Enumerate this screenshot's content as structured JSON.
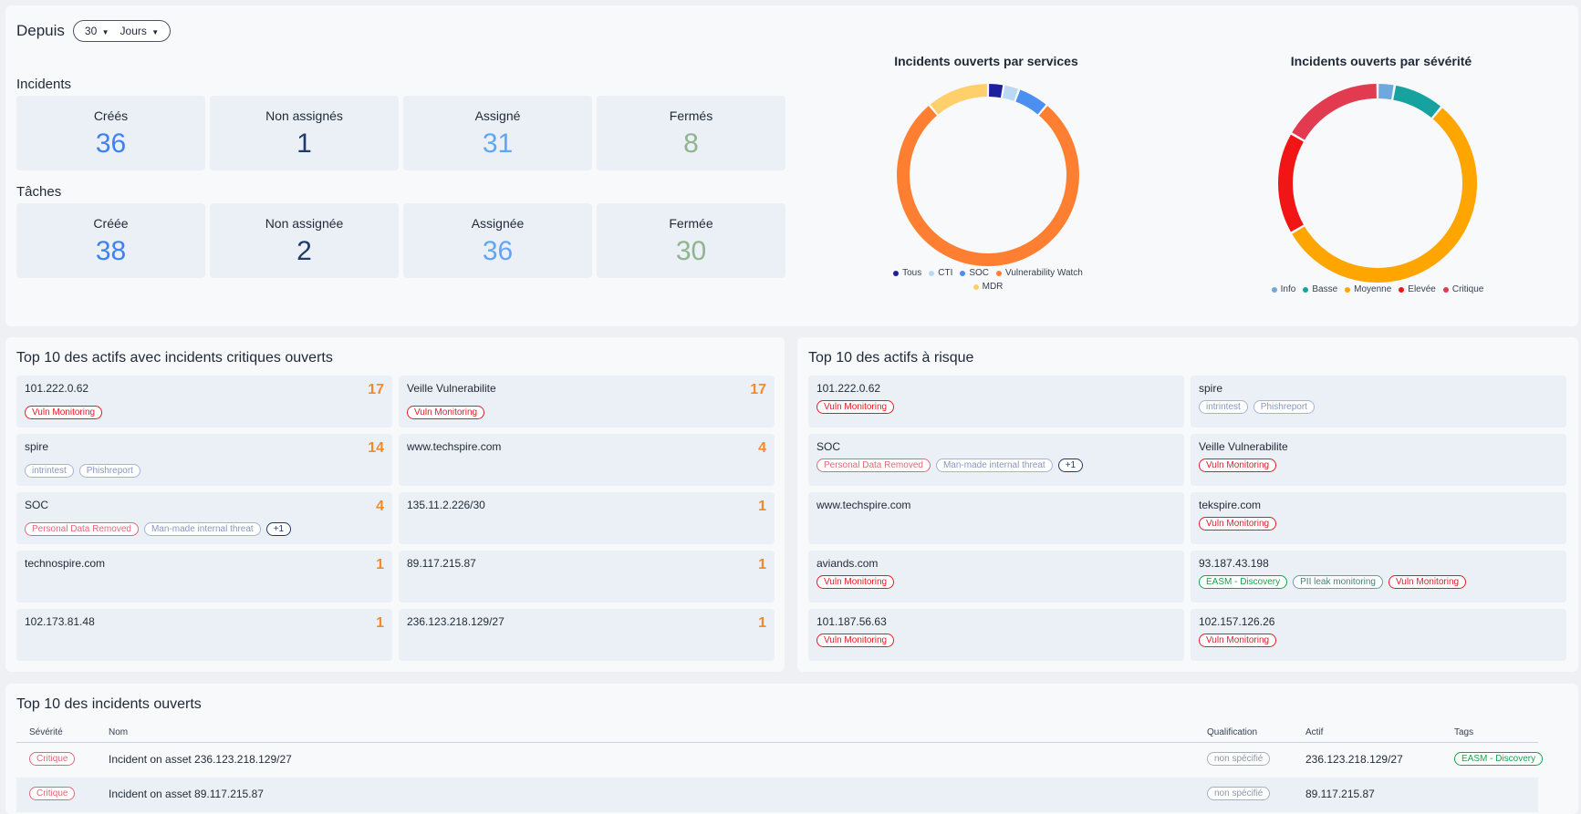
{
  "filter": {
    "label": "Depuis",
    "count": "30",
    "unit": "Jours"
  },
  "incidents": {
    "title": "Incidents",
    "stats": [
      {
        "label": "Créés",
        "value": "36",
        "color": "#3b82f6"
      },
      {
        "label": "Non assignés",
        "value": "1",
        "color": "#1e3a66"
      },
      {
        "label": "Assigné",
        "value": "31",
        "color": "#60a5fa"
      },
      {
        "label": "Fermés",
        "value": "8",
        "color": "#90b48f"
      }
    ]
  },
  "taches": {
    "title": "Tâches",
    "stats": [
      {
        "label": "Créée",
        "value": "38",
        "color": "#3b82f6"
      },
      {
        "label": "Non assignée",
        "value": "2",
        "color": "#1e3a66"
      },
      {
        "label": "Assignée",
        "value": "36",
        "color": "#60a5fa"
      },
      {
        "label": "Fermée",
        "value": "30",
        "color": "#90b48f"
      }
    ]
  },
  "chart_data": [
    {
      "type": "pie",
      "title": "Incidents ouverts par services",
      "donut": true,
      "categories": [
        "Tous",
        "CTI",
        "SOC",
        "Vulnerability Watch",
        "MDR"
      ],
      "values": [
        1,
        1,
        2,
        28,
        4
      ],
      "colors": [
        "#1e1e9f",
        "#bcd9f4",
        "#4b8ff0",
        "#ff7f32",
        "#ffcf6b"
      ],
      "legend": "bottom"
    },
    {
      "type": "pie",
      "title": "Incidents ouverts par sévérité",
      "donut": true,
      "categories": [
        "Info",
        "Basse",
        "Moyenne",
        "Elevée",
        "Critique"
      ],
      "values": [
        1,
        3,
        20,
        6,
        6
      ],
      "colors": [
        "#6fa8dc",
        "#17a2a0",
        "#ffa500",
        "#f21515",
        "#e23b50"
      ],
      "legend": "bottom"
    }
  ],
  "critical_assets": {
    "title": "Top 10 des actifs avec incidents critiques ouverts",
    "items": [
      {
        "name": "101.222.0.62",
        "count": "17",
        "tags": [
          {
            "text": "Vuln Monitoring",
            "style": "red"
          }
        ]
      },
      {
        "name": "Veille Vulnerabilite",
        "count": "17",
        "tags": [
          {
            "text": "Vuln Monitoring",
            "style": "red"
          }
        ]
      },
      {
        "name": "spire",
        "count": "14",
        "tags": [
          {
            "text": "intrintest",
            "style": "lav"
          },
          {
            "text": "Phishreport",
            "style": "lav"
          }
        ]
      },
      {
        "name": "www.techspire.com",
        "count": "4",
        "tags": []
      },
      {
        "name": "SOC",
        "count": "4",
        "tags": [
          {
            "text": "Personal Data Removed",
            "style": "pink"
          },
          {
            "text": "Man-made internal threat",
            "style": "lav"
          },
          {
            "text": "+1",
            "style": "plus"
          }
        ]
      },
      {
        "name": "135.11.2.226/30",
        "count": "1",
        "tags": []
      },
      {
        "name": "technospire.com",
        "count": "1",
        "tags": []
      },
      {
        "name": "89.117.215.87",
        "count": "1",
        "tags": []
      },
      {
        "name": "102.173.81.48",
        "count": "1",
        "tags": []
      },
      {
        "name": "236.123.218.129/27",
        "count": "1",
        "tags": []
      }
    ]
  },
  "risk_assets": {
    "title": "Top 10 des actifs à risque",
    "items": [
      {
        "name": "101.222.0.62",
        "tags": [
          {
            "text": "Vuln Monitoring",
            "style": "red"
          }
        ]
      },
      {
        "name": "spire",
        "tags": [
          {
            "text": "intrintest",
            "style": "lav"
          },
          {
            "text": "Phishreport",
            "style": "lav"
          }
        ]
      },
      {
        "name": "SOC",
        "tags": [
          {
            "text": "Personal Data Removed",
            "style": "pink"
          },
          {
            "text": "Man-made internal threat",
            "style": "lav"
          },
          {
            "text": "+1",
            "style": "plus"
          }
        ]
      },
      {
        "name": "Veille Vulnerabilite",
        "tags": [
          {
            "text": "Vuln Monitoring",
            "style": "red"
          }
        ]
      },
      {
        "name": "www.techspire.com",
        "tags": []
      },
      {
        "name": "tekspire.com",
        "tags": [
          {
            "text": "Vuln Monitoring",
            "style": "red"
          }
        ]
      },
      {
        "name": "aviands.com",
        "tags": [
          {
            "text": "Vuln Monitoring",
            "style": "red"
          }
        ]
      },
      {
        "name": "93.187.43.198",
        "tags": [
          {
            "text": "EASM - Discovery",
            "style": "green"
          },
          {
            "text": "PII leak monitoring",
            "style": "teal"
          },
          {
            "text": "Vuln Monitoring",
            "style": "red"
          }
        ]
      },
      {
        "name": "101.187.56.63",
        "tags": [
          {
            "text": "Vuln Monitoring",
            "style": "red"
          }
        ]
      },
      {
        "name": "102.157.126.26",
        "tags": [
          {
            "text": "Vuln Monitoring",
            "style": "red"
          }
        ]
      }
    ]
  },
  "open_incidents": {
    "title": "Top 10 des incidents ouverts",
    "columns": [
      "Sévérité",
      "Nom",
      "Qualification",
      "Actif",
      "Tags"
    ],
    "rows": [
      {
        "severity": "Critique",
        "name": "Incident on asset 236.123.218.129/27",
        "qualification": "non spécifié",
        "asset": "236.123.218.129/27",
        "tag": "EASM - Discovery"
      },
      {
        "severity": "Critique",
        "name": "Incident on asset 89.117.215.87",
        "qualification": "non spécifié",
        "asset": "89.117.215.87",
        "tag": ""
      }
    ]
  }
}
